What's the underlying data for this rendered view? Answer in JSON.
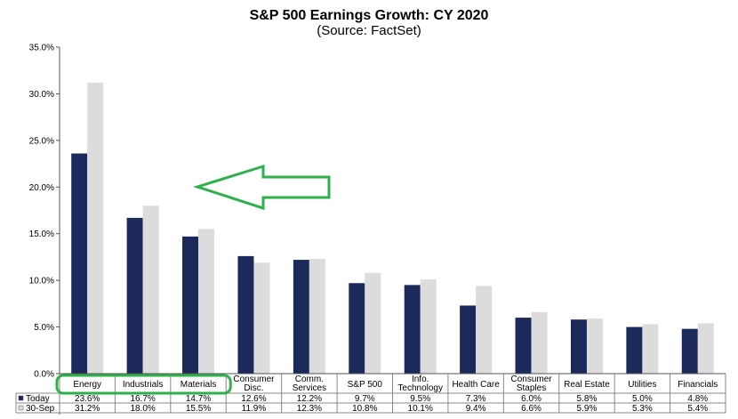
{
  "chart_data": {
    "type": "bar",
    "title": "S&P 500 Earnings Growth: CY 2020",
    "subtitle": "(Source: FactSet)",
    "categories": [
      "Energy",
      "Industrials",
      "Materials",
      "Consumer Disc.",
      "Comm. Services",
      "S&P 500",
      "Info. Technology",
      "Health Care",
      "Consumer Staples",
      "Real Estate",
      "Utilities",
      "Financials"
    ],
    "category_lines": [
      [
        "Energy"
      ],
      [
        "Industrials"
      ],
      [
        "Materials"
      ],
      [
        "Consumer",
        "Disc."
      ],
      [
        "Comm.",
        "Services"
      ],
      [
        "S&P 500"
      ],
      [
        "Info.",
        "Technology"
      ],
      [
        "Health Care"
      ],
      [
        "Consumer",
        "Staples"
      ],
      [
        "Real Estate"
      ],
      [
        "Utilities"
      ],
      [
        "Financials"
      ]
    ],
    "series": [
      {
        "name": "Today",
        "color": "#1b2a5a",
        "values": [
          23.6,
          16.7,
          14.7,
          12.6,
          12.2,
          9.7,
          9.5,
          7.3,
          6.0,
          5.8,
          5.0,
          4.8
        ]
      },
      {
        "name": "30-Sep",
        "color": "#dcdcdc",
        "values": [
          31.2,
          18.0,
          15.5,
          11.9,
          12.3,
          10.8,
          10.1,
          9.4,
          6.6,
          5.9,
          5.3,
          5.4
        ]
      }
    ],
    "table_rows": [
      {
        "label": "Today",
        "cells": [
          "23.6%",
          "16.7%",
          "14.7%",
          "12.6%",
          "12.2%",
          "9.7%",
          "9.5%",
          "7.3%",
          "6.0%",
          "5.8%",
          "5.0%",
          "4.8%"
        ]
      },
      {
        "label": "30-Sep",
        "cells": [
          "31.2%",
          "18.0%",
          "15.5%",
          "11.9%",
          "12.3%",
          "10.8%",
          "10.1%",
          "9.4%",
          "6.6%",
          "5.9%",
          "5.3%",
          "5.4%"
        ]
      }
    ],
    "y_ticks": [
      "0.0%",
      "5.0%",
      "10.0%",
      "15.0%",
      "20.0%",
      "25.0%",
      "30.0%",
      "35.0%"
    ],
    "ylim": [
      0,
      35
    ],
    "grid": false,
    "legend": "data-table",
    "annotations": [
      {
        "kind": "arrow",
        "color": "#2db14a",
        "points_to": "y-axis"
      },
      {
        "kind": "rounded-box",
        "color": "#2db14a",
        "encloses": [
          "Energy",
          "Industrials",
          "Materials"
        ]
      }
    ]
  }
}
